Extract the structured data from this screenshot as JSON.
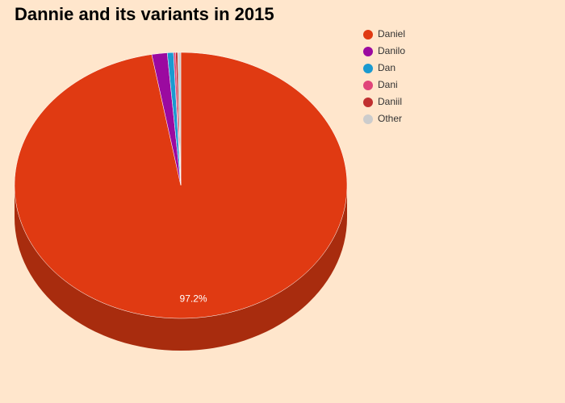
{
  "chart_data": {
    "type": "pie",
    "title": "Dannie and its variants in 2015",
    "categories": [
      "Daniel",
      "Danilo",
      "Dan",
      "Dani",
      "Daniil",
      "Other"
    ],
    "values": [
      97.2,
      1.5,
      0.6,
      0.2,
      0.2,
      0.3
    ],
    "value_labels": [
      "97.2%",
      null,
      null,
      null,
      null,
      null
    ],
    "colors": [
      "#e03a12",
      "#9b0aa0",
      "#1a9ad0",
      "#e0457a",
      "#c03030",
      "#cccccc"
    ]
  }
}
